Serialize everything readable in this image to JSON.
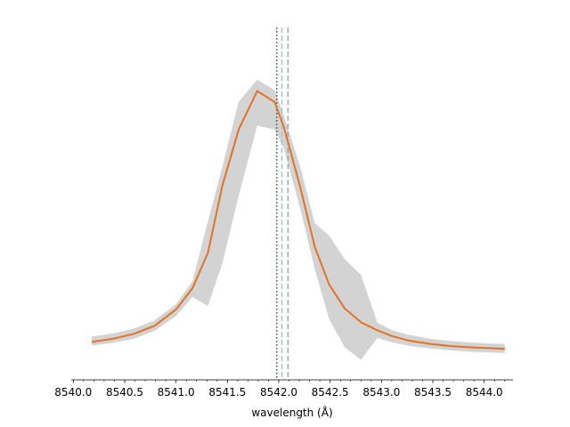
{
  "chart_data": {
    "type": "line",
    "xlabel": "wavelength (Å)",
    "ylabel": "",
    "xlim": [
      8539.98,
      8544.28
    ],
    "ylim": [
      0,
      1.1
    ],
    "grid": false,
    "xticks": [
      8540.0,
      8540.5,
      8541.0,
      8541.5,
      8542.0,
      8542.5,
      8543.0,
      8543.5,
      8544.0
    ],
    "xtick_labels": [
      "8540.0",
      "8540.5",
      "8541.0",
      "8541.5",
      "8542.0",
      "8542.5",
      "8543.0",
      "8543.5",
      "8544.0"
    ],
    "x_minor_step": 0.1,
    "y_axis_visible": false,
    "series": [
      {
        "color": "#e37222",
        "x": [
          8540.18,
          8540.39,
          8540.59,
          8540.79,
          8541.0,
          8541.16,
          8541.31,
          8541.45,
          8541.61,
          8541.79,
          8541.96,
          8542.05,
          8542.21,
          8542.35,
          8542.49,
          8542.64,
          8542.8,
          8542.96,
          8543.1,
          8543.26,
          8543.48,
          8543.71,
          8543.92,
          8544.2
        ],
        "y": [
          0.127,
          0.138,
          0.154,
          0.181,
          0.236,
          0.307,
          0.425,
          0.65,
          0.839,
          0.968,
          0.931,
          0.846,
          0.645,
          0.446,
          0.32,
          0.24,
          0.193,
          0.166,
          0.147,
          0.132,
          0.12,
          0.112,
          0.108,
          0.104
        ]
      }
    ],
    "band": {
      "color": "#d3d3d3",
      "x": [
        8540.18,
        8540.39,
        8540.59,
        8540.79,
        8541.0,
        8541.16,
        8541.31,
        8541.45,
        8541.61,
        8541.79,
        8541.96,
        8542.05,
        8542.21,
        8542.35,
        8542.49,
        8542.64,
        8542.8,
        8542.96,
        8543.1,
        8543.26,
        8543.48,
        8543.71,
        8543.92,
        8544.2
      ],
      "upper": [
        0.145,
        0.156,
        0.172,
        0.199,
        0.254,
        0.33,
        0.531,
        0.713,
        0.932,
        1.006,
        0.971,
        0.885,
        0.713,
        0.525,
        0.484,
        0.405,
        0.352,
        0.192,
        0.167,
        0.151,
        0.137,
        0.129,
        0.124,
        0.12
      ],
      "lower": [
        0.115,
        0.124,
        0.138,
        0.164,
        0.214,
        0.278,
        0.247,
        0.39,
        0.617,
        0.852,
        0.839,
        0.775,
        0.573,
        0.371,
        0.204,
        0.11,
        0.067,
        0.14,
        0.126,
        0.114,
        0.105,
        0.098,
        0.093,
        0.09
      ]
    },
    "vlines": [
      {
        "x": 8541.98,
        "color": "#444444",
        "style": "dotted"
      },
      {
        "x": 8542.03,
        "color": "#9cc7d9",
        "style": "dashed"
      },
      {
        "x": 8542.09,
        "color": "#a5a5a5",
        "style": "dashed"
      }
    ]
  }
}
